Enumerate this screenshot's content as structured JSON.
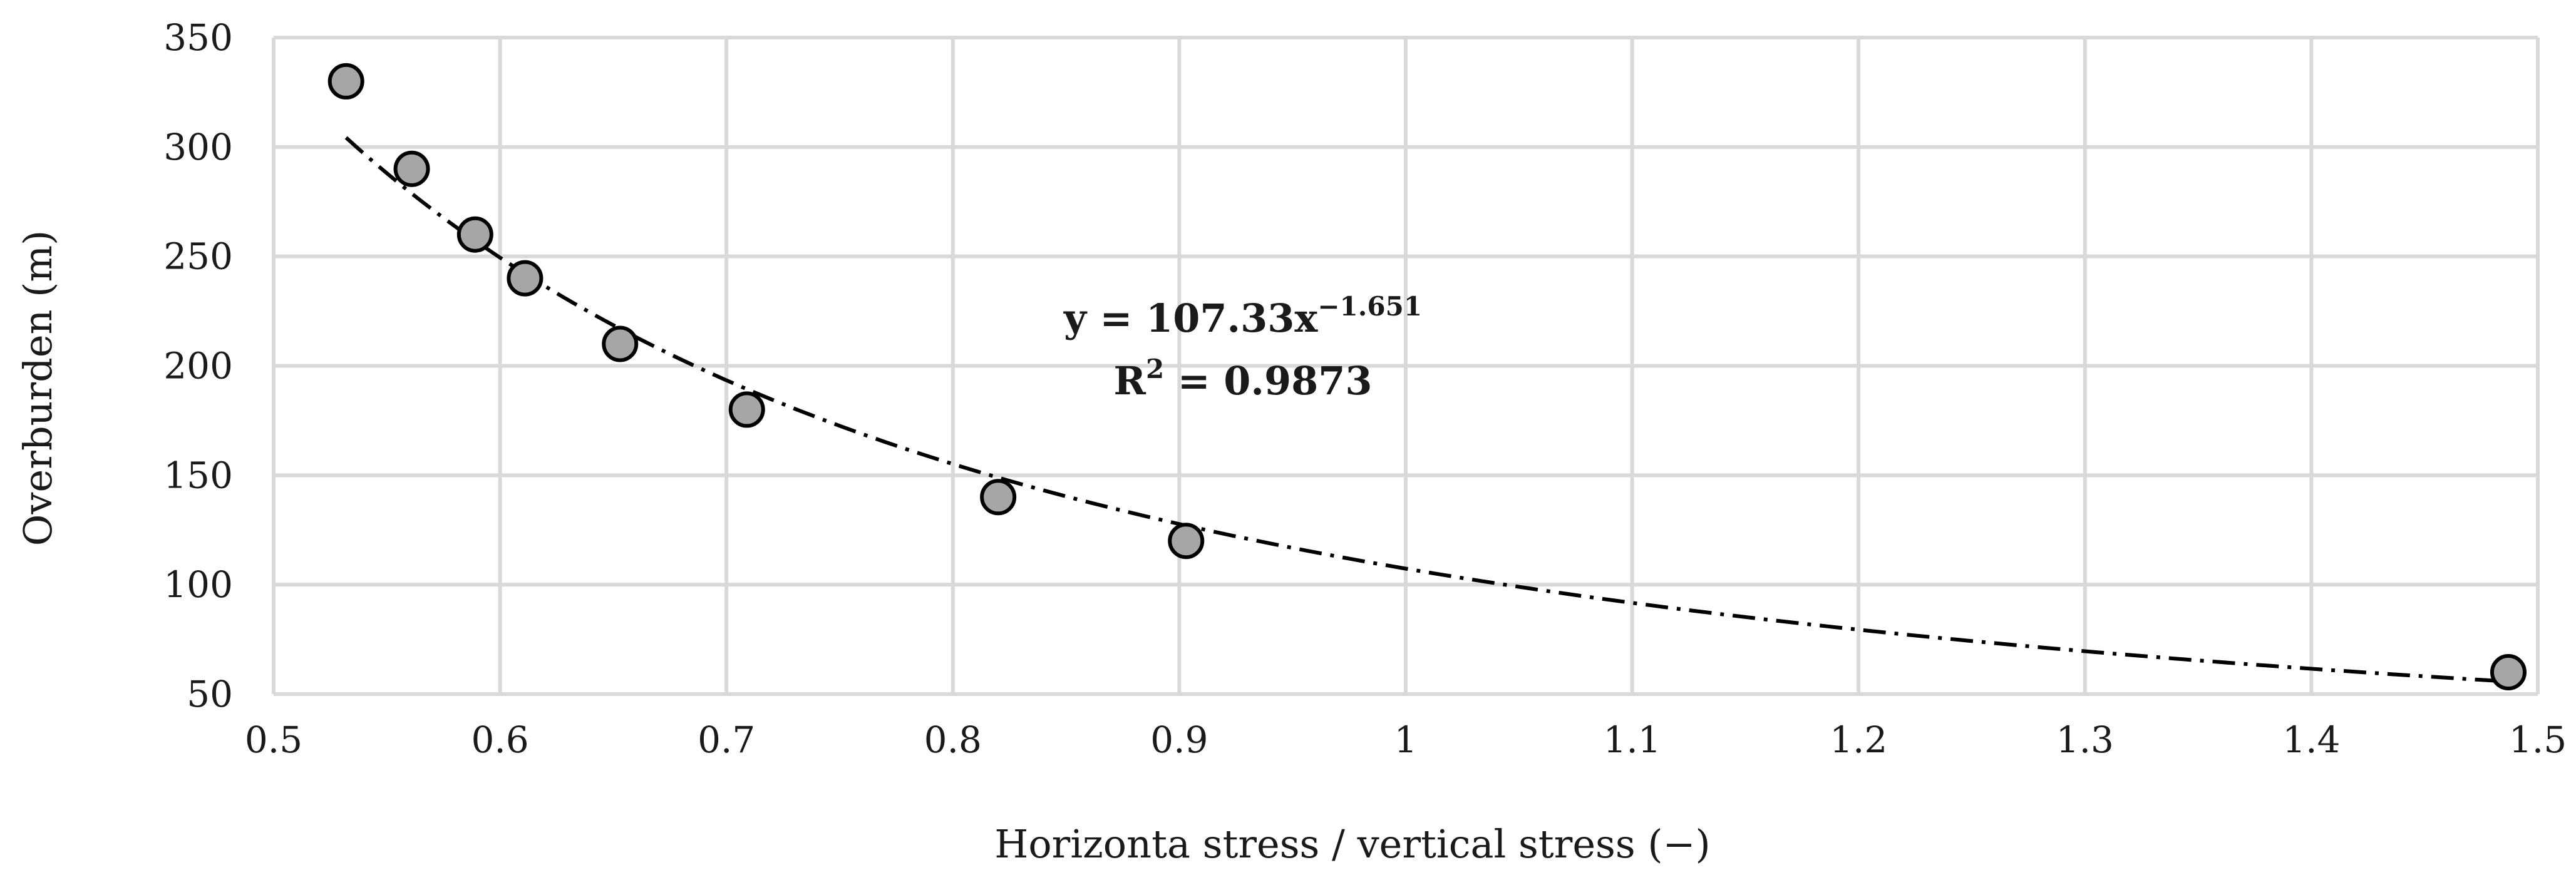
{
  "chart_data": {
    "type": "scatter",
    "title": "",
    "xlabel": "Horizonta stress / vertical stress (−)",
    "ylabel": "Overburden (m)",
    "xlim": [
      0.5,
      1.5
    ],
    "ylim": [
      50,
      350
    ],
    "x_ticks": [
      0.5,
      0.6,
      0.7,
      0.8,
      0.9,
      1,
      1.1,
      1.2,
      1.3,
      1.4,
      1.5
    ],
    "x_tick_labels": [
      "0.5",
      "0.6",
      "0.7",
      "0.8",
      "0.9",
      "1",
      "1.1",
      "1.2",
      "1.3",
      "1.4",
      "1.5"
    ],
    "y_ticks": [
      50,
      100,
      150,
      200,
      250,
      300,
      350
    ],
    "y_tick_labels": [
      "50",
      "100",
      "150",
      "200",
      "250",
      "300",
      "350"
    ],
    "grid": true,
    "series": [
      {
        "name": "Overburden",
        "x": [
          0.532,
          0.561,
          0.589,
          0.611,
          0.653,
          0.709,
          0.82,
          0.903,
          1.487
        ],
        "y": [
          330,
          290,
          260,
          240,
          210,
          180,
          140,
          120,
          60
        ],
        "marker_fill": "#a6a6a6",
        "marker_edge": "#000000"
      }
    ],
    "trendline": {
      "type": "power",
      "coefficient": 107.33,
      "exponent": -1.651,
      "x_range": [
        0.532,
        1.487
      ],
      "equation_prefix": "y = 107.33x",
      "equation_exponent": "−1.651",
      "r2_prefix": "R",
      "r2_sup": "2",
      "r2_value": " = 0.9873",
      "color": "#000000"
    }
  }
}
